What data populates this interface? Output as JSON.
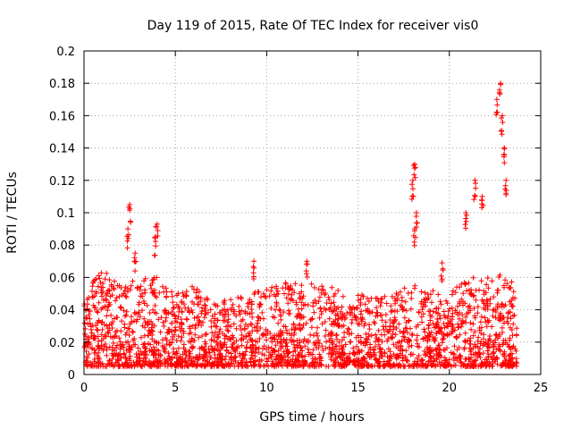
{
  "chart_data": {
    "type": "scatter",
    "title": "Day 119 of 2015, Rate Of TEC Index for receiver vis0",
    "xlabel": "GPS time / hours",
    "ylabel": "ROTI / TECUs",
    "xlim": [
      0,
      25
    ],
    "ylim": [
      0,
      0.2
    ],
    "xticks": [
      0,
      5,
      10,
      15,
      20,
      25
    ],
    "yticks": [
      0,
      0.02,
      0.04,
      0.06,
      0.08,
      0.1,
      0.12,
      0.14,
      0.16,
      0.18,
      0.2
    ],
    "xtick_labels": [
      "0",
      "5",
      "10",
      "15",
      "20",
      "25"
    ],
    "ytick_labels": [
      "0",
      "0.02",
      "0.04",
      "0.06",
      "0.08",
      "0.1",
      "0.12",
      "0.14",
      "0.16",
      "0.18",
      "0.2"
    ],
    "grid": true,
    "marker": "+",
    "marker_color": "#ff0000",
    "series": [
      {
        "name": "ROTI",
        "color": "#ff0000",
        "envelope": [
          {
            "x": 0.0,
            "max": 0.05
          },
          {
            "x": 1.0,
            "max": 0.065
          },
          {
            "x": 2.0,
            "max": 0.055
          },
          {
            "x": 3.0,
            "max": 0.06
          },
          {
            "x": 4.0,
            "max": 0.06
          },
          {
            "x": 5.0,
            "max": 0.05
          },
          {
            "x": 6.0,
            "max": 0.055
          },
          {
            "x": 7.0,
            "max": 0.045
          },
          {
            "x": 8.0,
            "max": 0.048
          },
          {
            "x": 9.0,
            "max": 0.05
          },
          {
            "x": 10.0,
            "max": 0.055
          },
          {
            "x": 11.0,
            "max": 0.058
          },
          {
            "x": 12.0,
            "max": 0.056
          },
          {
            "x": 13.0,
            "max": 0.057
          },
          {
            "x": 14.0,
            "max": 0.052
          },
          {
            "x": 15.0,
            "max": 0.05
          },
          {
            "x": 16.0,
            "max": 0.048
          },
          {
            "x": 17.0,
            "max": 0.05
          },
          {
            "x": 18.0,
            "max": 0.058
          },
          {
            "x": 19.0,
            "max": 0.052
          },
          {
            "x": 20.0,
            "max": 0.05
          },
          {
            "x": 21.0,
            "max": 0.06
          },
          {
            "x": 22.0,
            "max": 0.06
          },
          {
            "x": 23.0,
            "max": 0.062
          },
          {
            "x": 23.7,
            "max": 0.055
          }
        ],
        "notable_points": [
          {
            "x": 2.5,
            "y": 0.105
          },
          {
            "x": 2.4,
            "y": 0.09
          },
          {
            "x": 2.8,
            "y": 0.075
          },
          {
            "x": 4.0,
            "y": 0.093
          },
          {
            "x": 3.9,
            "y": 0.085
          },
          {
            "x": 9.3,
            "y": 0.07
          },
          {
            "x": 12.2,
            "y": 0.07
          },
          {
            "x": 18.1,
            "y": 0.13
          },
          {
            "x": 18.0,
            "y": 0.12
          },
          {
            "x": 18.2,
            "y": 0.1
          },
          {
            "x": 18.1,
            "y": 0.09
          },
          {
            "x": 19.6,
            "y": 0.069
          },
          {
            "x": 20.9,
            "y": 0.1
          },
          {
            "x": 21.4,
            "y": 0.12
          },
          {
            "x": 21.8,
            "y": 0.11
          },
          {
            "x": 22.6,
            "y": 0.17
          },
          {
            "x": 22.8,
            "y": 0.18
          },
          {
            "x": 22.9,
            "y": 0.16
          },
          {
            "x": 23.0,
            "y": 0.14
          },
          {
            "x": 23.1,
            "y": 0.12
          }
        ]
      }
    ]
  }
}
